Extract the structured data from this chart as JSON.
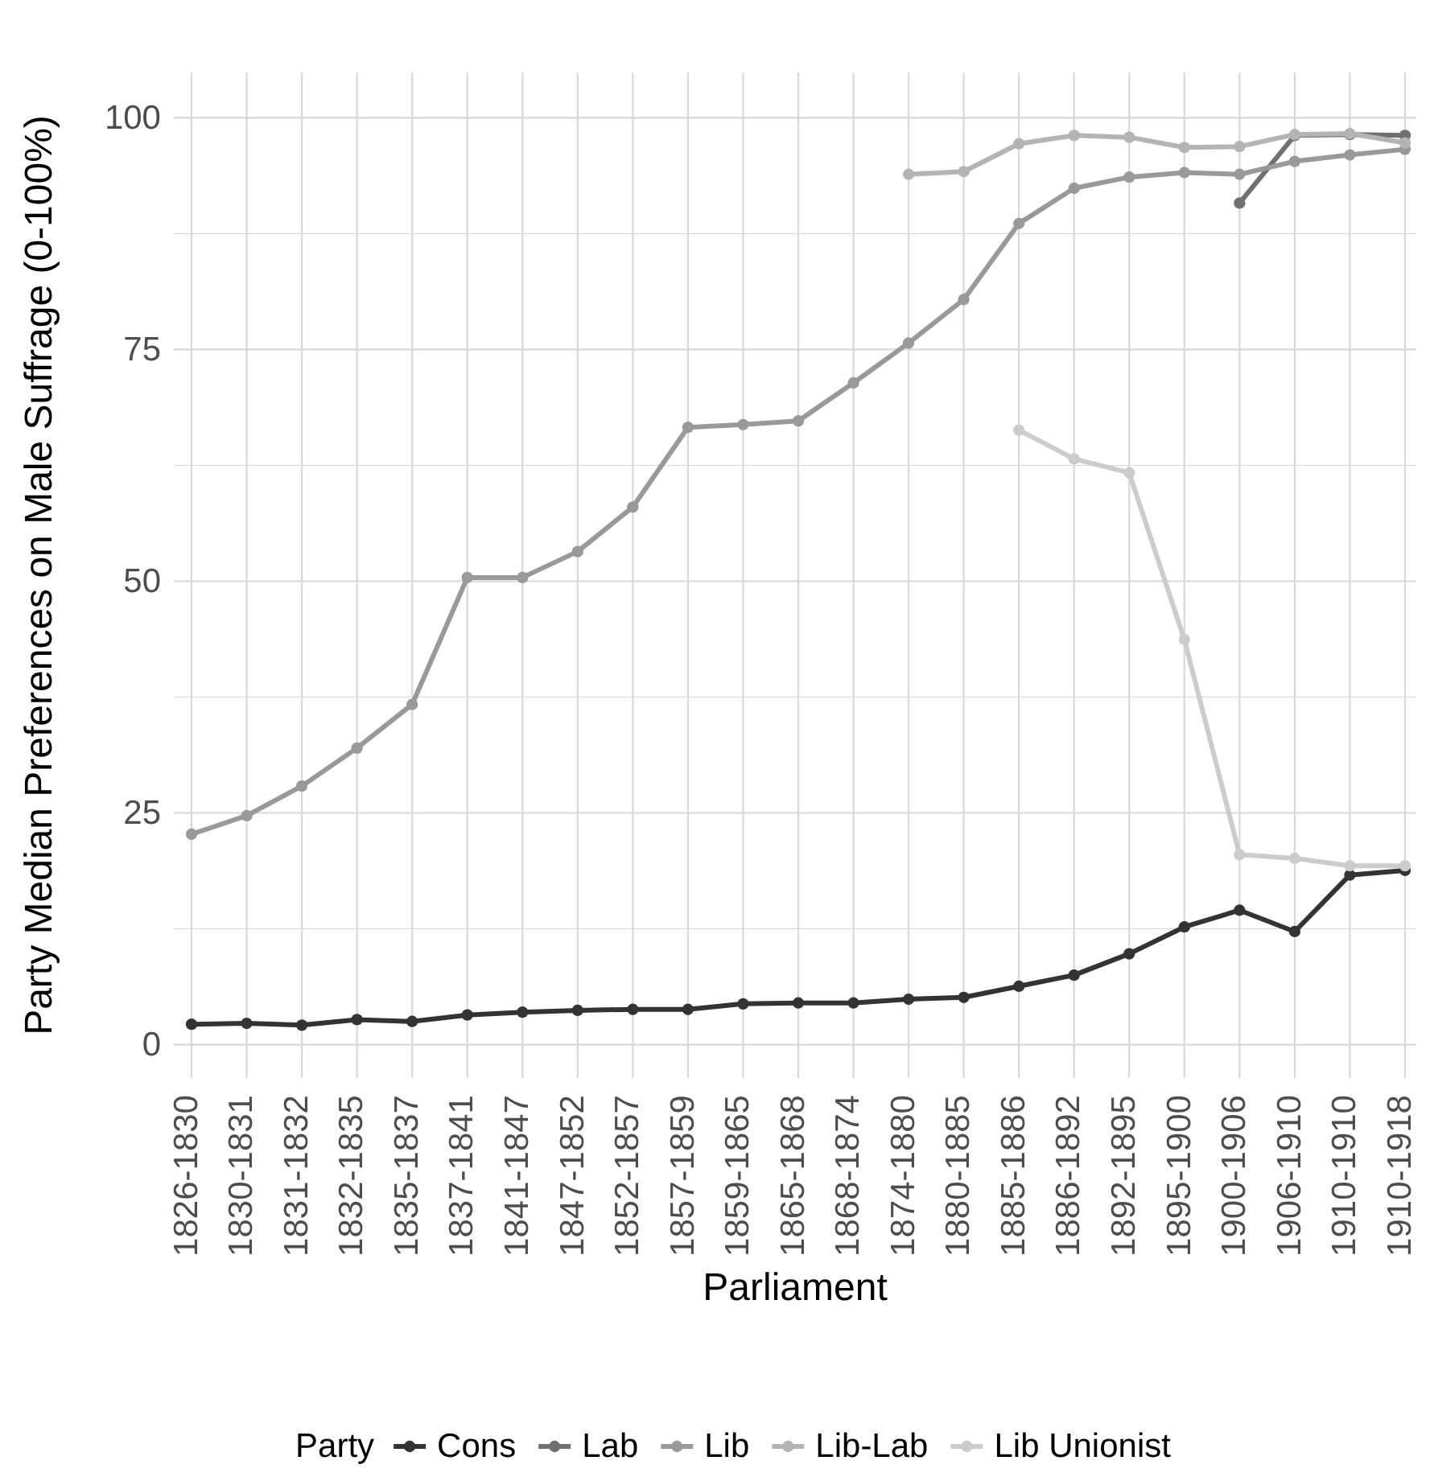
{
  "chart_data": {
    "type": "line",
    "xlabel": "Parliament",
    "ylabel": "Party Median Preferences on Male Suffrage (0-100%)",
    "legend_title": "Party",
    "legend": "bottom",
    "grid": true,
    "marker": "circle",
    "line_style": "solid",
    "categories": [
      "1826-1830",
      "1830-1831",
      "1831-1832",
      "1832-1835",
      "1835-1837",
      "1837-1841",
      "1841-1847",
      "1847-1852",
      "1852-1857",
      "1857-1859",
      "1859-1865",
      "1865-1868",
      "1868-1874",
      "1874-1880",
      "1880-1885",
      "1885-1886",
      "1886-1892",
      "1892-1895",
      "1895-1900",
      "1900-1906",
      "1906-1910",
      "1910-1910",
      "1910-1918"
    ],
    "ylim": [
      -3.6,
      104.9
    ],
    "yticks": [
      0,
      {
        "value": 12.5,
        "label": null
      },
      25,
      {
        "value": 37.5,
        "label": null
      },
      50,
      {
        "value": 62.5,
        "label": null
      },
      75,
      {
        "value": 87.5,
        "label": null
      },
      100
    ],
    "series": [
      {
        "name": "Cons",
        "color": "#333333",
        "values": [
          2.2,
          2.3,
          2.1,
          2.7,
          2.5,
          3.2,
          3.5,
          3.7,
          3.8,
          3.8,
          4.4,
          4.5,
          4.5,
          4.9,
          5.1,
          6.3,
          7.5,
          9.8,
          12.7,
          14.5,
          12.2,
          18.3,
          18.8
        ]
      },
      {
        "name": "Lab",
        "color": "#707070",
        "values": [
          null,
          null,
          null,
          null,
          null,
          null,
          null,
          null,
          null,
          null,
          null,
          null,
          null,
          null,
          null,
          null,
          null,
          null,
          null,
          90.8,
          98.1,
          98.2,
          98.1
        ]
      },
      {
        "name": "Lib",
        "color": "#999999",
        "values": [
          22.7,
          24.7,
          27.9,
          32,
          36.7,
          50.4,
          50.4,
          53.2,
          58,
          66.6,
          66.9,
          67.3,
          71.4,
          75.7,
          80.4,
          88.6,
          92.4,
          93.6,
          94.1,
          93.9,
          95.3,
          96,
          96.6
        ]
      },
      {
        "name": "Lib-Lab",
        "color": "#b4b4b4",
        "values": [
          null,
          null,
          null,
          null,
          null,
          null,
          null,
          null,
          null,
          null,
          null,
          null,
          null,
          93.9,
          94.2,
          97.2,
          98.1,
          97.9,
          96.8,
          96.9,
          98.2,
          98.3,
          97.3
        ]
      },
      {
        "name": "Lib Unionist",
        "color": "#cccccc",
        "values": [
          null,
          null,
          null,
          null,
          null,
          null,
          null,
          null,
          null,
          null,
          null,
          null,
          null,
          null,
          null,
          66.3,
          63.2,
          61.7,
          43.7,
          20.5,
          20.1,
          19.3,
          19.3
        ]
      }
    ]
  }
}
